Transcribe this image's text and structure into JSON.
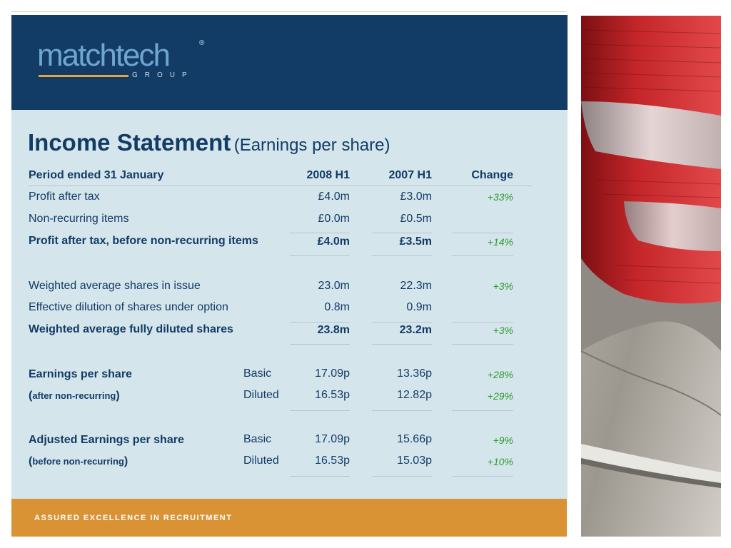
{
  "brand": {
    "logo_text": "matchtech",
    "logo_sub": "GROUP",
    "registered": "®",
    "tagline": "ASSURED EXCELLENCE IN RECRUITMENT"
  },
  "title": {
    "main": "Income Statement",
    "sub": "(Earnings per share)"
  },
  "table": {
    "header": {
      "label": "Period ended 31 January",
      "col1": "2008 H1",
      "col2": "2007 H1",
      "col3": "Change"
    },
    "rows": [
      {
        "label": "Profit after tax",
        "v1": "£4.0m",
        "v2": "£3.0m",
        "chg": "+33%"
      },
      {
        "label": "Non-recurring items",
        "v1": "£0.0m",
        "v2": "£0.5m",
        "chg": ""
      },
      {
        "label": "Profit after tax, before non-recurring items",
        "v1": "£4.0m",
        "v2": "£3.5m",
        "chg": "+14%"
      },
      {
        "label": "Weighted average shares in issue",
        "v1": "23.0m",
        "v2": "22.3m",
        "chg": "+3%"
      },
      {
        "label": "Effective dilution of shares under option",
        "v1": "0.8m",
        "v2": "0.9m",
        "chg": ""
      },
      {
        "label": "Weighted average fully diluted shares",
        "v1": "23.8m",
        "v2": "23.2m",
        "chg": "+3%"
      }
    ],
    "eps": {
      "label": "Earnings per share",
      "note_open": "(",
      "note": "after non-recurring",
      "note_close": ")",
      "basic": {
        "type": "Basic",
        "v1": "17.09p",
        "v2": "13.36p",
        "chg": "+28%"
      },
      "diluted": {
        "type": "Diluted",
        "v1": "16.53p",
        "v2": "12.82p",
        "chg": "+29%"
      }
    },
    "adj_eps": {
      "label": "Adjusted Earnings per share",
      "note_open": "(",
      "note": "before non-recurring",
      "note_close": ")",
      "basic": {
        "type": "Basic",
        "v1": "17.09p",
        "v2": "15.66p",
        "chg": "+9%"
      },
      "diluted": {
        "type": "Diluted",
        "v1": "16.53p",
        "v2": "15.03p",
        "chg": "+10%"
      }
    }
  }
}
